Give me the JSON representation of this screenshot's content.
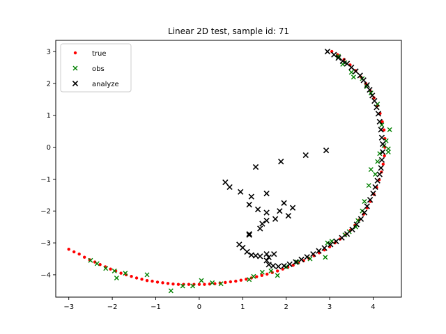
{
  "chart_data": {
    "type": "scatter",
    "title": "Linear 2D test, sample id: 71",
    "xlabel": "",
    "ylabel": "",
    "xlim": [
      -3.3,
      4.65
    ],
    "ylim": [
      -4.7,
      3.35
    ],
    "xticks": [
      -3,
      -2,
      -1,
      0,
      1,
      2,
      3,
      4
    ],
    "yticks": [
      -4,
      -3,
      -2,
      -1,
      0,
      1,
      2,
      3
    ],
    "grid": false,
    "legend_position": "upper left",
    "series": [
      {
        "name": "true",
        "marker": "dot",
        "color": "#ff0000",
        "points": [
          [
            -3.0,
            -3.2
          ],
          [
            -2.88,
            -3.28
          ],
          [
            -2.76,
            -3.35
          ],
          [
            -2.64,
            -3.45
          ],
          [
            -2.52,
            -3.53
          ],
          [
            -2.4,
            -3.6
          ],
          [
            -2.28,
            -3.68
          ],
          [
            -2.16,
            -3.75
          ],
          [
            -2.04,
            -3.82
          ],
          [
            -1.92,
            -3.88
          ],
          [
            -1.8,
            -3.95
          ],
          [
            -1.68,
            -4.0
          ],
          [
            -1.56,
            -4.05
          ],
          [
            -1.44,
            -4.1
          ],
          [
            -1.32,
            -4.14
          ],
          [
            -1.2,
            -4.18
          ],
          [
            -1.08,
            -4.2
          ],
          [
            -0.96,
            -4.23
          ],
          [
            -0.84,
            -4.25
          ],
          [
            -0.72,
            -4.27
          ],
          [
            -0.6,
            -4.29
          ],
          [
            -0.48,
            -4.3
          ],
          [
            -0.36,
            -4.3
          ],
          [
            -0.24,
            -4.3
          ],
          [
            -0.12,
            -4.3
          ],
          [
            0.0,
            -4.3
          ],
          [
            0.12,
            -4.3
          ],
          [
            0.24,
            -4.29
          ],
          [
            0.36,
            -4.28
          ],
          [
            0.48,
            -4.26
          ],
          [
            0.6,
            -4.24
          ],
          [
            0.72,
            -4.22
          ],
          [
            0.84,
            -4.2
          ],
          [
            0.96,
            -4.17
          ],
          [
            1.08,
            -4.14
          ],
          [
            1.2,
            -4.1
          ],
          [
            1.32,
            -4.06
          ],
          [
            1.44,
            -4.02
          ],
          [
            1.56,
            -3.98
          ],
          [
            1.68,
            -3.93
          ],
          [
            1.8,
            -3.88
          ],
          [
            1.92,
            -3.82
          ],
          [
            2.04,
            -3.76
          ],
          [
            2.16,
            -3.7
          ],
          [
            2.28,
            -3.63
          ],
          [
            2.4,
            -3.56
          ],
          [
            2.52,
            -3.48
          ],
          [
            2.64,
            -3.4
          ],
          [
            2.76,
            -3.31
          ],
          [
            2.88,
            -3.22
          ],
          [
            3.0,
            -3.12
          ],
          [
            3.12,
            -3.0
          ],
          [
            3.24,
            -2.88
          ],
          [
            3.36,
            -2.75
          ],
          [
            3.48,
            -2.6
          ],
          [
            3.58,
            -2.45
          ],
          [
            3.68,
            -2.28
          ],
          [
            3.78,
            -2.1
          ],
          [
            3.86,
            -1.9
          ],
          [
            3.94,
            -1.7
          ],
          [
            4.02,
            -1.48
          ],
          [
            4.08,
            -1.26
          ],
          [
            4.14,
            -1.02
          ],
          [
            4.19,
            -0.78
          ],
          [
            4.23,
            -0.53
          ],
          [
            4.26,
            -0.27
          ],
          [
            4.27,
            0.0
          ],
          [
            4.27,
            0.27
          ],
          [
            4.25,
            0.54
          ],
          [
            4.21,
            0.8
          ],
          [
            4.16,
            1.06
          ],
          [
            4.1,
            1.3
          ],
          [
            4.02,
            1.55
          ],
          [
            3.93,
            1.78
          ],
          [
            3.83,
            2.0
          ],
          [
            3.72,
            2.2
          ],
          [
            3.6,
            2.4
          ],
          [
            3.47,
            2.58
          ],
          [
            3.33,
            2.75
          ],
          [
            3.18,
            2.9
          ],
          [
            3.05,
            3.0
          ]
        ]
      },
      {
        "name": "obs",
        "marker": "x-small",
        "color": "#008000",
        "points": [
          [
            -2.5,
            -3.55
          ],
          [
            -2.35,
            -3.65
          ],
          [
            -2.15,
            -3.8
          ],
          [
            -1.95,
            -3.88
          ],
          [
            -1.9,
            -4.1
          ],
          [
            -1.7,
            -3.95
          ],
          [
            -1.2,
            -4.0
          ],
          [
            -0.65,
            -4.5
          ],
          [
            -0.38,
            -4.35
          ],
          [
            -0.15,
            -4.35
          ],
          [
            0.05,
            -4.18
          ],
          [
            0.3,
            -4.25
          ],
          [
            0.5,
            -4.28
          ],
          [
            1.15,
            -4.15
          ],
          [
            1.25,
            -4.05
          ],
          [
            1.45,
            -3.92
          ],
          [
            1.65,
            -3.88
          ],
          [
            1.8,
            -4.02
          ],
          [
            2.0,
            -3.75
          ],
          [
            2.25,
            -3.6
          ],
          [
            2.55,
            -3.5
          ],
          [
            2.9,
            -3.45
          ],
          [
            2.95,
            -3.0
          ],
          [
            3.05,
            -2.95
          ],
          [
            3.35,
            -2.75
          ],
          [
            3.45,
            -2.65
          ],
          [
            3.6,
            -2.5
          ],
          [
            3.65,
            -2.3
          ],
          [
            3.75,
            -2.0
          ],
          [
            3.8,
            -1.7
          ],
          [
            3.9,
            -1.2
          ],
          [
            3.95,
            -0.7
          ],
          [
            4.05,
            -0.85
          ],
          [
            4.1,
            -0.45
          ],
          [
            4.15,
            -0.2
          ],
          [
            4.25,
            0.05
          ],
          [
            4.3,
            0.2
          ],
          [
            4.35,
            -0.05
          ],
          [
            4.35,
            -0.15
          ],
          [
            4.38,
            0.55
          ],
          [
            4.2,
            0.7
          ],
          [
            4.1,
            1.35
          ],
          [
            3.95,
            1.7
          ],
          [
            3.85,
            1.9
          ],
          [
            3.75,
            2.15
          ],
          [
            3.5,
            2.35
          ],
          [
            3.3,
            2.6
          ],
          [
            3.2,
            2.85
          ],
          [
            3.35,
            2.65
          ],
          [
            3.55,
            2.2
          ]
        ]
      },
      {
        "name": "analyze",
        "marker": "x",
        "color": "#000000",
        "points": [
          [
            2.95,
            3.0
          ],
          [
            3.1,
            2.9
          ],
          [
            3.2,
            2.8
          ],
          [
            3.3,
            2.7
          ],
          [
            3.4,
            2.62
          ],
          [
            3.5,
            2.5
          ],
          [
            3.6,
            2.38
          ],
          [
            3.7,
            2.25
          ],
          [
            3.78,
            2.1
          ],
          [
            3.86,
            1.95
          ],
          [
            3.92,
            1.8
          ],
          [
            3.98,
            1.62
          ],
          [
            4.03,
            1.45
          ],
          [
            4.08,
            1.25
          ],
          [
            4.12,
            1.05
          ],
          [
            4.15,
            0.8
          ],
          [
            4.18,
            0.55
          ],
          [
            4.2,
            0.3
          ],
          [
            4.22,
            0.1
          ],
          [
            4.22,
            -0.15
          ],
          [
            4.2,
            -0.4
          ],
          [
            4.18,
            -0.65
          ],
          [
            4.15,
            -0.85
          ],
          [
            4.1,
            -1.05
          ],
          [
            4.05,
            -1.25
          ],
          [
            4.0,
            -1.45
          ],
          [
            3.93,
            -1.65
          ],
          [
            3.86,
            -1.85
          ],
          [
            3.8,
            -2.05
          ],
          [
            3.72,
            -2.25
          ],
          [
            3.62,
            -2.42
          ],
          [
            3.52,
            -2.58
          ],
          [
            3.4,
            -2.72
          ],
          [
            3.28,
            -2.84
          ],
          [
            3.15,
            -2.95
          ],
          [
            3.02,
            -3.05
          ],
          [
            2.88,
            -3.16
          ],
          [
            2.75,
            -3.25
          ],
          [
            2.62,
            -3.35
          ],
          [
            2.48,
            -3.44
          ],
          [
            2.35,
            -3.52
          ],
          [
            2.22,
            -3.6
          ],
          [
            2.08,
            -3.67
          ],
          [
            1.95,
            -3.72
          ],
          [
            1.82,
            -3.74
          ],
          [
            1.7,
            -3.72
          ],
          [
            1.6,
            -3.68
          ],
          [
            1.55,
            -3.55
          ],
          [
            1.6,
            -3.45
          ],
          [
            1.72,
            -3.35
          ],
          [
            1.55,
            -3.35
          ],
          [
            1.4,
            -3.42
          ],
          [
            1.3,
            -3.4
          ],
          [
            1.2,
            -3.38
          ],
          [
            1.1,
            -3.28
          ],
          [
            1.0,
            -3.15
          ],
          [
            0.92,
            -3.05
          ],
          [
            1.15,
            -2.72
          ],
          [
            1.15,
            -2.75
          ],
          [
            1.4,
            -2.55
          ],
          [
            1.45,
            -2.4
          ],
          [
            1.55,
            -2.3
          ],
          [
            1.55,
            -2.05
          ],
          [
            1.75,
            -2.25
          ],
          [
            1.85,
            -2.0
          ],
          [
            1.95,
            -1.75
          ],
          [
            2.05,
            -2.15
          ],
          [
            2.15,
            -1.9
          ],
          [
            1.35,
            -1.95
          ],
          [
            1.55,
            -1.45
          ],
          [
            1.15,
            -1.8
          ],
          [
            1.2,
            -1.55
          ],
          [
            0.95,
            -1.4
          ],
          [
            0.7,
            -1.25
          ],
          [
            0.6,
            -1.1
          ],
          [
            1.3,
            -0.62
          ],
          [
            1.88,
            -0.45
          ],
          [
            2.45,
            -0.25
          ],
          [
            2.92,
            -0.1
          ]
        ]
      }
    ]
  }
}
